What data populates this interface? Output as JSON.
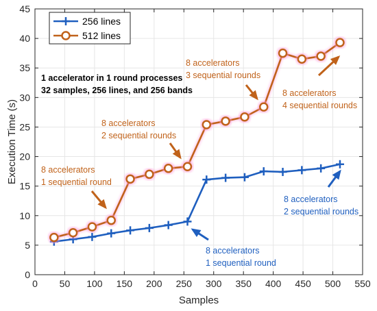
{
  "chart_data": {
    "type": "line",
    "xlabel": "Samples",
    "ylabel": "Execution Time (s)",
    "xlim": [
      0,
      550
    ],
    "ylim": [
      0,
      45
    ],
    "xticks": [
      0,
      50,
      100,
      150,
      200,
      250,
      300,
      350,
      400,
      450,
      500,
      550
    ],
    "yticks": [
      0,
      5,
      10,
      15,
      20,
      25,
      30,
      35,
      40,
      45
    ],
    "grid": true,
    "legend_position": "top-left",
    "series": [
      {
        "name": "256 lines",
        "color": "#1f5fbf",
        "marker": "plus",
        "x": [
          32,
          64,
          96,
          128,
          160,
          192,
          224,
          256,
          288,
          320,
          352,
          384,
          416,
          448,
          480,
          512
        ],
        "y": [
          5.6,
          6.0,
          6.4,
          7.0,
          7.5,
          7.9,
          8.4,
          9.0,
          16.1,
          16.4,
          16.5,
          17.5,
          17.4,
          17.7,
          18.0,
          18.7
        ]
      },
      {
        "name": "512 lines",
        "color": "#c0621a",
        "marker": "circle",
        "x": [
          32,
          64,
          96,
          128,
          160,
          192,
          224,
          256,
          288,
          320,
          352,
          384,
          416,
          448,
          480,
          512
        ],
        "y": [
          6.3,
          7.1,
          8.1,
          9.2,
          16.2,
          17.0,
          18.0,
          18.3,
          25.4,
          26.0,
          26.7,
          28.4,
          37.5,
          36.5,
          37.0,
          39.3
        ]
      }
    ],
    "annotations": [
      {
        "lines": [
          "1 accelerator in 1 round processes",
          "32 samples, 256 lines, and 256 bands"
        ],
        "color": "#000000",
        "bold": true
      },
      {
        "lines": [
          "8 accelerators",
          "1 sequential round"
        ],
        "color": "#c0621a",
        "bold": false
      },
      {
        "lines": [
          "8 accelerators",
          "2 sequential rounds"
        ],
        "color": "#c0621a",
        "bold": false
      },
      {
        "lines": [
          "8 accelerators",
          "3 sequential rounds"
        ],
        "color": "#c0621a",
        "bold": false
      },
      {
        "lines": [
          "8 accelerators",
          "4 sequential rounds"
        ],
        "color": "#c0621a",
        "bold": false
      },
      {
        "lines": [
          "8 accelerators",
          "1 sequential round"
        ],
        "color": "#1f5fbf",
        "bold": false
      },
      {
        "lines": [
          "8 accelerators",
          "2 sequential rounds"
        ],
        "color": "#1f5fbf",
        "bold": false
      }
    ]
  }
}
